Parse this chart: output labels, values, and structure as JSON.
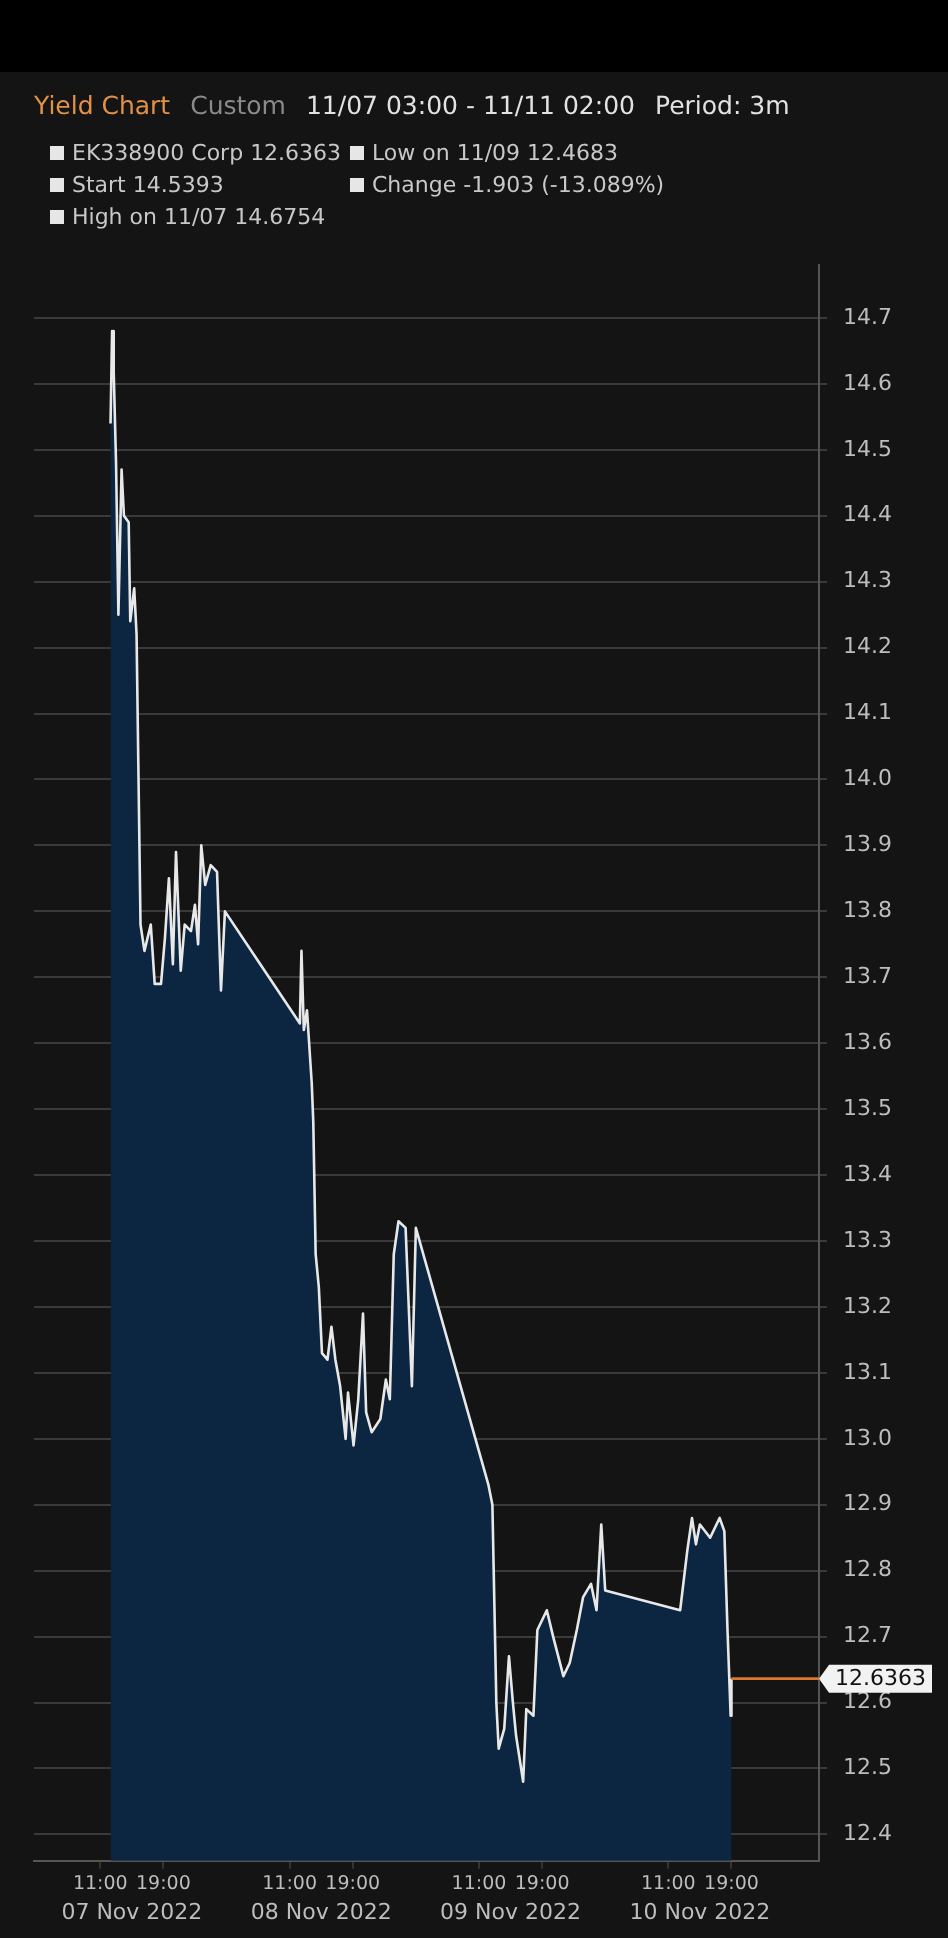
{
  "chart_data": {
    "type": "area",
    "title": "Yield Chart",
    "subtitle": "Custom",
    "annotations": [
      "11/07 03:00 - 11/11 02:00",
      "Period: 3m",
      "EK338900 Corp 12.6363",
      "Low on 11/09 12.4683",
      "Start 14.5393",
      "Change -1.903 (-13.089%)",
      "High on 11/07 14.6754"
    ],
    "series": [
      {
        "color": "#e8e8e8",
        "x": [
          "2022-11-07T12:18",
          "2022-11-07T12:30",
          "2022-11-07T12:42",
          "2022-11-07T13:00",
          "2022-11-07T13:18",
          "2022-11-07T13:42",
          "2022-11-07T14:00",
          "2022-11-07T14:36",
          "2022-11-07T14:48",
          "2022-11-07T15:18",
          "2022-11-07T15:24",
          "2022-11-07T15:36",
          "2022-11-07T16:06",
          "2022-11-07T16:36",
          "2022-11-07T17:24",
          "2022-11-07T17:54",
          "2022-11-07T18:42",
          "2022-11-07T19:12",
          "2022-11-07T19:42",
          "2022-11-07T20:12",
          "2022-11-07T20:36",
          "2022-11-07T21:12",
          "2022-11-07T21:42",
          "2022-11-07T22:30",
          "2022-11-07T23:00",
          "2022-11-07T23:24",
          "2022-11-07T23:48",
          "2022-11-08T00:18",
          "2022-11-08T01:00",
          "2022-11-08T01:48",
          "2022-11-08T02:18",
          "2022-11-08T02:48",
          "2022-11-08T12:18",
          "2022-11-08T12:30",
          "2022-11-08T12:48",
          "2022-11-08T13:12",
          "2022-11-08T13:48",
          "2022-11-08T14:00",
          "2022-11-08T14:18",
          "2022-11-08T14:42",
          "2022-11-08T15:06",
          "2022-11-08T15:48",
          "2022-11-08T16:18",
          "2022-11-08T16:48",
          "2022-11-08T17:24",
          "2022-11-08T18:06",
          "2022-11-08T18:24",
          "2022-11-08T19:06",
          "2022-11-08T19:42",
          "2022-11-08T20:18",
          "2022-11-08T20:42",
          "2022-11-08T21:24",
          "2022-11-08T22:30",
          "2022-11-08T23:12",
          "2022-11-08T23:42",
          "2022-11-09T00:12",
          "2022-11-09T00:48",
          "2022-11-09T01:42",
          "2022-11-09T02:30",
          "2022-11-09T03:00",
          "2022-11-09T12:12",
          "2022-11-09T12:42",
          "2022-11-09T13:12",
          "2022-11-09T13:30",
          "2022-11-09T14:12",
          "2022-11-09T14:48",
          "2022-11-09T15:18",
          "2022-11-09T15:42",
          "2022-11-09T16:36",
          "2022-11-09T17:00",
          "2022-11-09T17:54",
          "2022-11-09T18:24",
          "2022-11-09T19:36",
          "2022-11-09T20:24",
          "2022-11-09T21:42",
          "2022-11-09T22:30",
          "2022-11-09T23:24",
          "2022-11-10T00:12",
          "2022-11-10T01:12",
          "2022-11-10T01:54",
          "2022-11-10T02:30",
          "2022-11-10T03:00",
          "2022-11-10T12:30",
          "2022-11-10T13:24",
          "2022-11-10T14:00",
          "2022-11-10T14:30",
          "2022-11-10T15:00",
          "2022-11-10T16:18",
          "2022-11-10T17:30",
          "2022-11-10T18:06",
          "2022-11-10T18:30",
          "2022-11-10T18:54",
          "2022-11-10T19:00"
        ],
        "values": [
          14.54,
          14.68,
          14.62,
          14.48,
          14.25,
          14.47,
          14.4,
          14.39,
          14.24,
          14.29,
          14.29,
          14.22,
          13.78,
          13.74,
          13.78,
          13.69,
          13.69,
          13.76,
          13.85,
          13.72,
          13.89,
          13.71,
          13.78,
          13.77,
          13.81,
          13.75,
          13.9,
          13.84,
          13.87,
          13.86,
          13.68,
          13.8,
          13.63,
          13.74,
          13.62,
          13.65,
          13.54,
          13.48,
          13.28,
          13.23,
          13.13,
          13.12,
          13.17,
          13.12,
          13.08,
          13.0,
          13.07,
          12.99,
          13.06,
          13.19,
          13.04,
          13.01,
          13.03,
          13.09,
          13.06,
          13.28,
          13.33,
          13.32,
          13.08,
          13.32,
          12.93,
          12.9,
          12.6,
          12.53,
          12.56,
          12.67,
          12.6,
          12.55,
          12.48,
          12.59,
          12.58,
          12.71,
          12.74,
          12.7,
          12.64,
          12.66,
          12.71,
          12.76,
          12.78,
          12.74,
          12.87,
          12.77,
          12.74,
          12.83,
          12.88,
          12.84,
          12.87,
          12.85,
          12.88,
          12.86,
          12.71,
          12.58,
          12.6363
        ]
      }
    ],
    "xlim": [
      "2022-11-07T02:36",
      "2022-11-11T06:06"
    ],
    "xticks": [
      {
        "value": "2022-11-07T11:00",
        "label": "11:00"
      },
      {
        "value": "2022-11-07T19:00",
        "label": "19:00"
      },
      {
        "value": "2022-11-08T11:00",
        "label": "11:00"
      },
      {
        "value": "2022-11-08T19:00",
        "label": "19:00"
      },
      {
        "value": "2022-11-09T11:00",
        "label": "11:00"
      },
      {
        "value": "2022-11-09T19:00",
        "label": "19:00"
      },
      {
        "value": "2022-11-10T11:00",
        "label": "11:00"
      },
      {
        "value": "2022-11-10T19:00",
        "label": "19:00"
      }
    ],
    "x2lim": [
      "2022-11-07T02:36",
      "2022-11-11T06:06"
    ],
    "x2ticks": [
      {
        "value": "2022-11-07T15:00",
        "label": "07 Nov 2022"
      },
      {
        "value": "2022-11-08T15:00",
        "label": "08 Nov 2022"
      },
      {
        "value": "2022-11-09T15:00",
        "label": "09 Nov 2022"
      },
      {
        "value": "2022-11-10T15:00",
        "label": "10 Nov 2022"
      }
    ],
    "ylim": [
      12.36,
      14.78
    ],
    "yticks": [
      12.4,
      12.5,
      12.6,
      12.7,
      12.8,
      12.9,
      {
        "value": 13,
        "label": "13.0"
      },
      13.1,
      13.2,
      13.3,
      13.4,
      13.5,
      13.6,
      13.7,
      13.8,
      13.9,
      {
        "value": 14,
        "label": "14.0"
      },
      14.1,
      14.2,
      14.3,
      14.4,
      14.5,
      14.6,
      14.7
    ],
    "ref_lines": [
      {
        "axis": "y",
        "value": 12.6363,
        "label": "12.6363",
        "color": "#d9782d"
      }
    ],
    "grid": "y",
    "legend": false
  }
}
